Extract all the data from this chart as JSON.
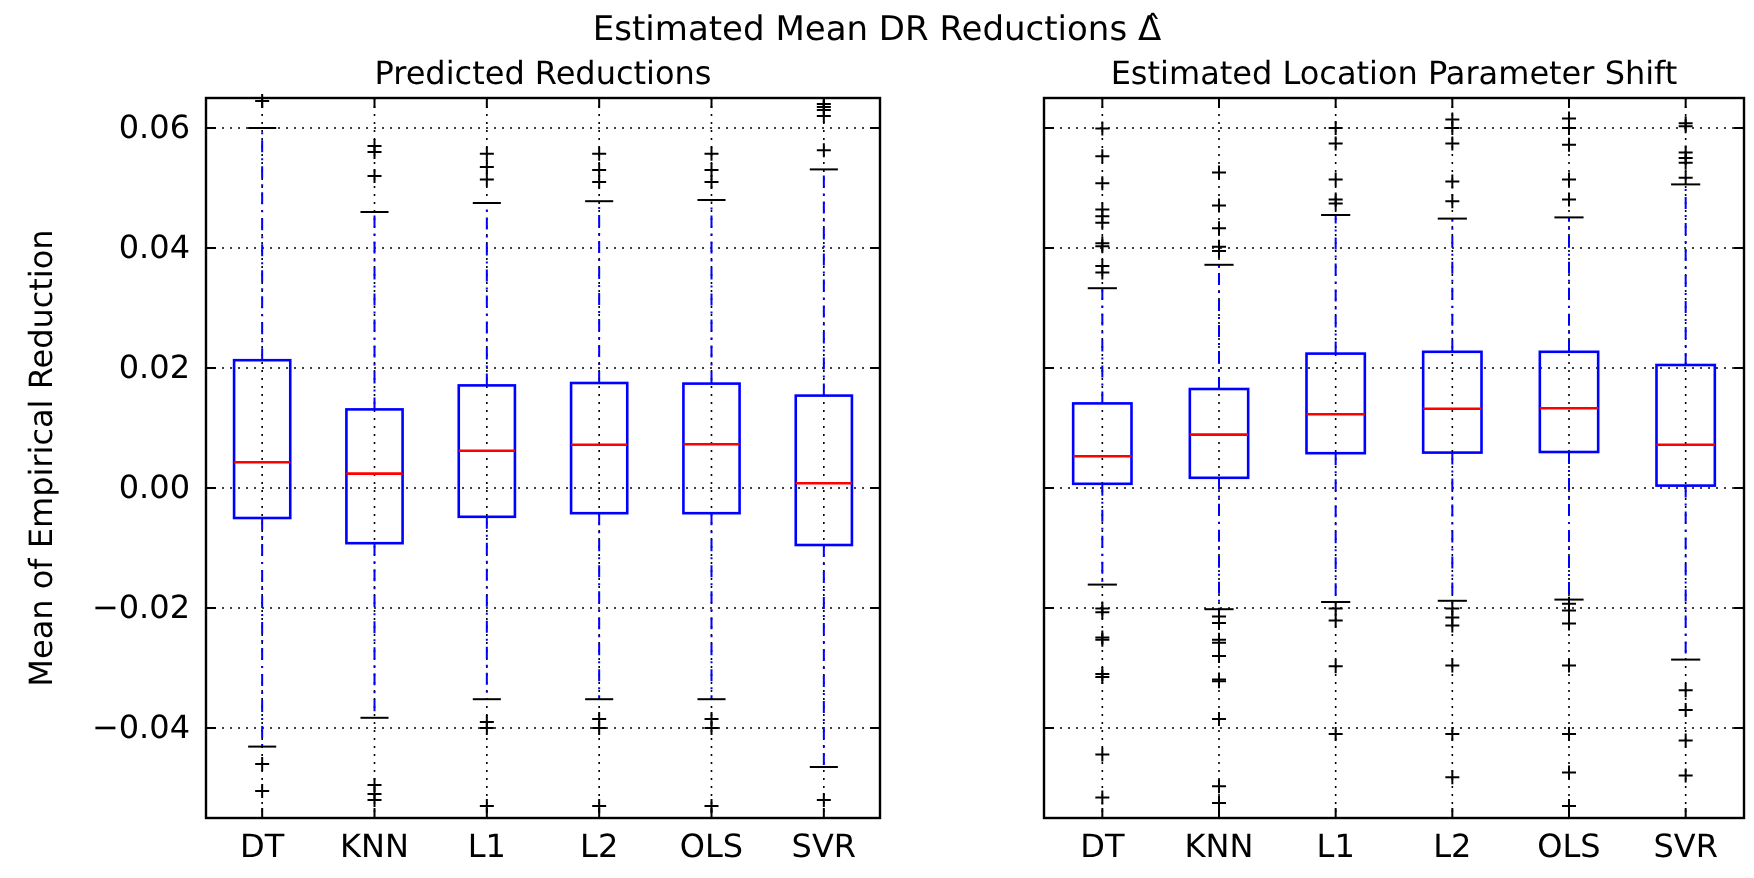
{
  "chart_data": [
    {
      "type": "box",
      "title": "Estimated Mean DR Reductions Δ̂",
      "subtitle": "Predicted Reductions",
      "ylabel": "Mean of Empirical Reduction",
      "categories": [
        "DT",
        "KNN",
        "L1",
        "L2",
        "OLS",
        "SVR"
      ],
      "color": "#0000ff",
      "ylim": [
        -0.055,
        0.065
      ],
      "yticks": [
        {
          "value": -0.04,
          "label": "−0.04"
        },
        {
          "value": -0.02,
          "label": "−0.02"
        },
        {
          "value": 0,
          "label": "0.00"
        },
        {
          "value": 0.02,
          "label": "0.02"
        },
        {
          "value": 0.04,
          "label": "0.04"
        },
        {
          "value": 0.06,
          "label": "0.06"
        }
      ],
      "grid": true,
      "marker": "cross",
      "boxes": [
        {
          "low": -0.0431,
          "q1": -0.005,
          "median": 0.0043,
          "q3": 0.0213,
          "high": 0.06,
          "outliers": [
            0.0645,
            -0.046,
            -0.0505
          ]
        },
        {
          "low": -0.0383,
          "q1": -0.0092,
          "median": 0.0024,
          "q3": 0.0131,
          "high": 0.046,
          "outliers": [
            0.057,
            0.056,
            0.052,
            -0.0495,
            -0.051,
            -0.052
          ]
        },
        {
          "low": -0.0352,
          "q1": -0.0048,
          "median": 0.0062,
          "q3": 0.0171,
          "high": 0.0475,
          "outliers": [
            0.0557,
            0.0535,
            0.0514,
            -0.039,
            -0.04,
            -0.053
          ]
        },
        {
          "low": -0.0352,
          "q1": -0.0042,
          "median": 0.0072,
          "q3": 0.0175,
          "high": 0.0478,
          "outliers": [
            0.0557,
            0.053,
            0.051,
            -0.0385,
            -0.04,
            -0.053
          ]
        },
        {
          "low": -0.0352,
          "q1": -0.0042,
          "median": 0.0073,
          "q3": 0.0174,
          "high": 0.048,
          "outliers": [
            0.0557,
            0.053,
            0.051,
            -0.0385,
            -0.04,
            -0.053
          ]
        },
        {
          "low": -0.0465,
          "q1": -0.0095,
          "median": 0.0008,
          "q3": 0.0154,
          "high": 0.0531,
          "outliers": [
            0.0563,
            0.062,
            0.063,
            0.0635,
            0.064,
            -0.052
          ]
        }
      ]
    },
    {
      "type": "box",
      "title": "Estimated Location Parameter Shift",
      "categories": [
        "DT",
        "KNN",
        "L1",
        "L2",
        "OLS",
        "SVR"
      ],
      "color": "#0000ff",
      "ylim": [
        -0.055,
        0.065
      ],
      "yticks": [
        -0.04,
        -0.02,
        0,
        0.02,
        0.04,
        0.06
      ],
      "tick_labels": "x",
      "grid": true,
      "marker": "cross",
      "boxes": [
        {
          "low": -0.0161,
          "q1": 0.0007,
          "median": 0.0053,
          "q3": 0.0141,
          "high": 0.0333,
          "outliers": [
            0.0599,
            0.0553,
            0.0508,
            0.0464,
            0.0453,
            0.0442,
            0.0408,
            0.0403,
            0.037,
            0.0359,
            -0.0201,
            -0.0207,
            -0.0249,
            -0.0253,
            -0.031,
            -0.0315,
            -0.0444,
            -0.0516
          ]
        },
        {
          "low": -0.0202,
          "q1": 0.0017,
          "median": 0.0089,
          "q3": 0.0165,
          "high": 0.0372,
          "outliers": [
            0.0526,
            0.0471,
            0.0433,
            0.0402,
            0.0395,
            -0.0214,
            -0.0225,
            -0.0253,
            -0.0258,
            -0.028,
            -0.0319,
            -0.0322,
            -0.0385,
            -0.0497,
            -0.0525
          ]
        },
        {
          "low": -0.019,
          "q1": 0.0058,
          "median": 0.0123,
          "q3": 0.0224,
          "high": 0.0455,
          "outliers": [
            0.06,
            0.0574,
            0.0514,
            0.0481,
            0.0474,
            -0.0201,
            -0.0221,
            -0.0297,
            -0.041
          ]
        },
        {
          "low": -0.0188,
          "q1": 0.0059,
          "median": 0.0132,
          "q3": 0.0227,
          "high": 0.0449,
          "outliers": [
            0.0614,
            0.06,
            0.0574,
            0.0511,
            0.0478,
            -0.0201,
            -0.0216,
            -0.0229,
            -0.0296,
            -0.041,
            -0.0482
          ]
        },
        {
          "low": -0.0186,
          "q1": 0.006,
          "median": 0.0133,
          "q3": 0.0227,
          "high": 0.0451,
          "outliers": [
            0.0616,
            0.06,
            0.0572,
            0.0514,
            0.0481,
            -0.0193,
            -0.0204,
            -0.0226,
            -0.0296,
            -0.041,
            -0.0474,
            -0.053
          ]
        },
        {
          "low": -0.0286,
          "q1": 0.0004,
          "median": 0.0072,
          "q3": 0.0205,
          "high": 0.0506,
          "outliers": [
            0.0608,
            0.0603,
            0.0559,
            0.055,
            0.0542,
            0.0517,
            -0.0337,
            -0.037,
            -0.0421,
            -0.0479
          ]
        }
      ]
    }
  ]
}
